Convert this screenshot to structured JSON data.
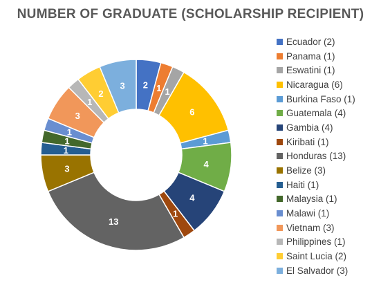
{
  "chart_data": {
    "type": "pie",
    "title": "NUMBER OF GRADUATE (SCHOLARSHIP RECIPIENT)",
    "legend_position": "right",
    "categories": [
      "Ecuador",
      "Panama",
      "Eswatini",
      "Nicaragua",
      "Burkina Faso",
      "Guatemala",
      "Gambia",
      "Kiribati",
      "Honduras",
      "Belize",
      "Haiti",
      "Malaysia",
      "Malawi",
      "Vietnam",
      "Philippines",
      "Saint Lucia",
      "El Salvador"
    ],
    "values": [
      2,
      1,
      1,
      6,
      1,
      4,
      4,
      1,
      13,
      3,
      1,
      1,
      1,
      3,
      1,
      2,
      3
    ],
    "legend_labels": [
      "Ecuador (2)",
      "Panama (1)",
      "Eswatini (1)",
      "Nicaragua (6)",
      "Burkina Faso (1)",
      "Guatemala (4)",
      "Gambia (4)",
      "Kiribati (1)",
      "Honduras (13)",
      "Belize (3)",
      "Haiti (1)",
      "Malaysia (1)",
      "Malawi (1)",
      "Vietnam (3)",
      "Philippines (1)",
      "Saint Lucia (2)",
      "El Salvador (3)"
    ],
    "data_labels": [
      "2",
      "1",
      "1",
      "6",
      "1",
      "4",
      "4",
      "1",
      "13",
      "3",
      "1",
      "1",
      "1",
      "3",
      "1",
      "2",
      "3"
    ],
    "colors": [
      "#4472C4",
      "#ED7D31",
      "#A5A5A5",
      "#FFC000",
      "#5B9BD5",
      "#70AD47",
      "#264478",
      "#9E480E",
      "#636363",
      "#997300",
      "#255E91",
      "#43682B",
      "#698ED0",
      "#F1975A",
      "#B7B7B7",
      "#FFCD33",
      "#7CAFDD"
    ]
  }
}
